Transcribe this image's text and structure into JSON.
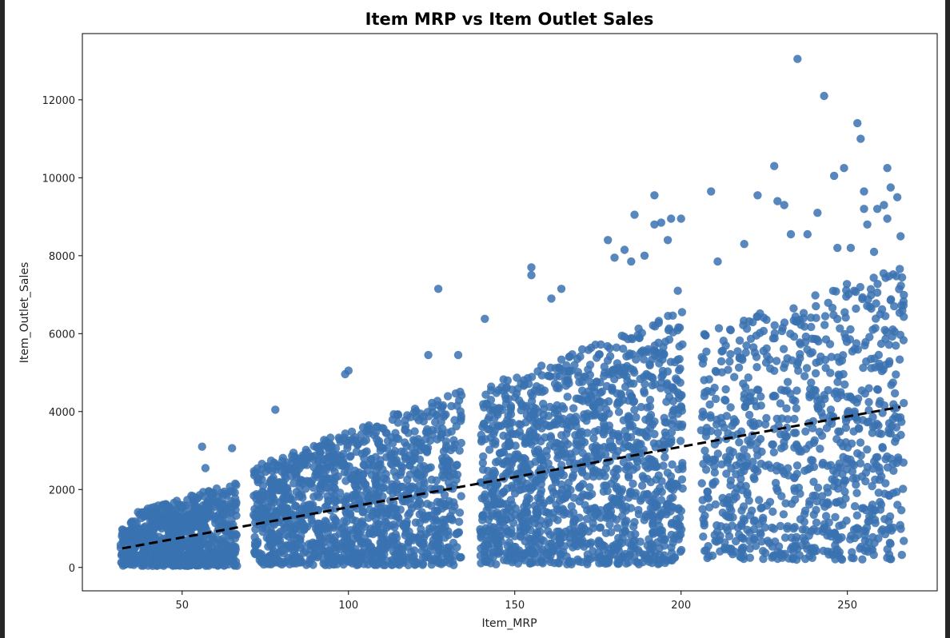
{
  "chart_data": {
    "type": "scatter",
    "title": "Item MRP vs Item Outlet Sales",
    "xlabel": "Item_MRP",
    "ylabel": "Item_Outlet_Sales",
    "xlim": [
      20,
      277
    ],
    "ylim": [
      -600,
      13700
    ],
    "xticks": [
      50,
      100,
      150,
      200,
      250
    ],
    "yticks": [
      0,
      2000,
      4000,
      6000,
      8000,
      10000,
      12000
    ],
    "grid": false,
    "point_color": "#3a72b0",
    "regression_line": {
      "style": "dashed",
      "color": "#000000",
      "points": [
        [
          32,
          490
        ],
        [
          266,
          4120
        ]
      ]
    },
    "clusters": [
      {
        "x_range": [
          31.5,
          66.5
        ],
        "y_min": 40,
        "y_top_at_start": 1300,
        "y_top_at_end": 2200,
        "count": 700
      },
      {
        "x_range": [
          71.5,
          134
        ],
        "y_min": 60,
        "y_top_at_start": 2600,
        "y_top_at_end": 4600,
        "count": 1300
      },
      {
        "x_range": [
          139.5,
          200.5
        ],
        "y_min": 80,
        "y_top_at_start": 4600,
        "y_top_at_end": 6600,
        "count": 1400
      },
      {
        "x_range": [
          206,
          267
        ],
        "y_min": 200,
        "y_top_at_start": 6000,
        "y_top_at_end": 7800,
        "count": 900
      }
    ],
    "outliers": [
      [
        56,
        3100
      ],
      [
        65,
        3060
      ],
      [
        57,
        2550
      ],
      [
        78,
        4050
      ],
      [
        100,
        5050
      ],
      [
        99,
        4960
      ],
      [
        127,
        7150
      ],
      [
        124,
        5450
      ],
      [
        133,
        5450
      ],
      [
        141,
        6380
      ],
      [
        155,
        7700
      ],
      [
        155,
        7500
      ],
      [
        161,
        6900
      ],
      [
        164,
        7150
      ],
      [
        178,
        8400
      ],
      [
        180,
        7950
      ],
      [
        183,
        8150
      ],
      [
        185,
        7850
      ],
      [
        186,
        9050
      ],
      [
        189,
        8000
      ],
      [
        192,
        9550
      ],
      [
        194,
        8850
      ],
      [
        192,
        8800
      ],
      [
        196,
        8400
      ],
      [
        197,
        8950
      ],
      [
        200,
        8950
      ],
      [
        199,
        7100
      ],
      [
        209,
        9650
      ],
      [
        211,
        7850
      ],
      [
        219,
        8300
      ],
      [
        223,
        9550
      ],
      [
        228,
        10300
      ],
      [
        229,
        9400
      ],
      [
        231,
        9300
      ],
      [
        235,
        13050
      ],
      [
        233,
        8550
      ],
      [
        238,
        8550
      ],
      [
        241,
        9100
      ],
      [
        243,
        12100
      ],
      [
        246,
        10050
      ],
      [
        249,
        10250
      ],
      [
        247,
        8200
      ],
      [
        253,
        11400
      ],
      [
        254,
        11000
      ],
      [
        255,
        9650
      ],
      [
        255,
        9200
      ],
      [
        256,
        8800
      ],
      [
        259,
        9200
      ],
      [
        261,
        9300
      ],
      [
        262,
        10250
      ],
      [
        263,
        9750
      ],
      [
        265,
        9500
      ],
      [
        266,
        8500
      ],
      [
        262,
        8950
      ],
      [
        258,
        8100
      ],
      [
        251,
        8200
      ]
    ]
  }
}
